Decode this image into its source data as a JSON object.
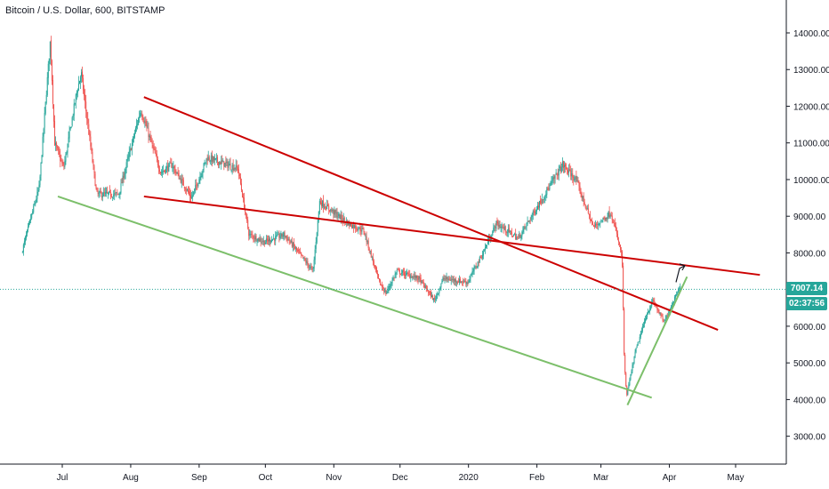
{
  "header": {
    "title": "Bitcoin / U.S. Dollar, 600, BITSTAMP"
  },
  "price_axis": {
    "ticks": [
      "14000.00",
      "13000.00",
      "12000.00",
      "11000.00",
      "10000.00",
      "9000.00",
      "8000.00",
      "6000.00",
      "5000.00",
      "4000.00",
      "3000.00"
    ],
    "last_price": "7007.14",
    "countdown": "02:37:56"
  },
  "time_axis": {
    "ticks": [
      "Jul",
      "Aug",
      "Sep",
      "Oct",
      "Nov",
      "Dec",
      "2020",
      "Feb",
      "Mar",
      "Apr",
      "May"
    ]
  },
  "colors": {
    "up": "#26a69a",
    "down": "#ef5350",
    "resistance": "#cc0000",
    "support": "#7cbf6a",
    "price_line": "#26a69a",
    "price_badge": "#26a69a",
    "countdown_badge": "#26a69a"
  },
  "chart_data": {
    "type": "candlestick",
    "symbol": "BTCUSD",
    "interval": "600",
    "exchange": "BITSTAMP",
    "ylim": [
      2500,
      14600
    ],
    "price_path": [
      [
        "2019-06-13",
        8000
      ],
      [
        "2019-06-21",
        9800
      ],
      [
        "2019-06-26",
        13800
      ],
      [
        "2019-06-28",
        11000
      ],
      [
        "2019-07-02",
        10300
      ],
      [
        "2019-07-08",
        12400
      ],
      [
        "2019-07-10",
        12900
      ],
      [
        "2019-07-17",
        9600
      ],
      [
        "2019-07-27",
        9600
      ],
      [
        "2019-08-06",
        11900
      ],
      [
        "2019-08-15",
        10200
      ],
      [
        "2019-08-20",
        10400
      ],
      [
        "2019-08-29",
        9500
      ],
      [
        "2019-09-05",
        10600
      ],
      [
        "2019-09-19",
        10300
      ],
      [
        "2019-09-24",
        8500
      ],
      [
        "2019-10-01",
        8300
      ],
      [
        "2019-10-10",
        8500
      ],
      [
        "2019-10-23",
        7500
      ],
      [
        "2019-10-26",
        9400
      ],
      [
        "2019-11-08",
        8800
      ],
      [
        "2019-11-15",
        8600
      ],
      [
        "2019-11-22",
        7200
      ],
      [
        "2019-11-25",
        6900
      ],
      [
        "2019-11-30",
        7500
      ],
      [
        "2019-12-10",
        7300
      ],
      [
        "2019-12-17",
        6700
      ],
      [
        "2019-12-21",
        7300
      ],
      [
        "2020-01-01",
        7200
      ],
      [
        "2020-01-08",
        8000
      ],
      [
        "2020-01-14",
        8800
      ],
      [
        "2020-01-24",
        8400
      ],
      [
        "2020-02-05",
        9600
      ],
      [
        "2020-02-13",
        10400
      ],
      [
        "2020-02-19",
        10000
      ],
      [
        "2020-02-27",
        8700
      ],
      [
        "2020-03-06",
        9100
      ],
      [
        "2020-03-11",
        7900
      ],
      [
        "2020-03-12",
        5000
      ],
      [
        "2020-03-13",
        4100
      ],
      [
        "2020-03-17",
        5300
      ],
      [
        "2020-03-22",
        6300
      ],
      [
        "2020-03-25",
        6700
      ],
      [
        "2020-03-30",
        6100
      ],
      [
        "2020-04-04",
        6800
      ],
      [
        "2020-04-06",
        7100
      ]
    ],
    "trendlines": [
      {
        "kind": "resistance",
        "from": [
          "2019-08-07",
          12250
        ],
        "to": [
          "2020-04-23",
          5900
        ]
      },
      {
        "kind": "resistance",
        "from": [
          "2019-08-07",
          9540
        ],
        "to": [
          "2020-05-12",
          7400
        ]
      },
      {
        "kind": "support",
        "from": [
          "2019-06-29",
          9540
        ],
        "to": [
          "2020-03-24",
          4050
        ]
      },
      {
        "kind": "support",
        "from": [
          "2020-03-13",
          3850
        ],
        "to": [
          "2020-04-09",
          7350
        ]
      }
    ],
    "projection_arrow": {
      "from": [
        "2020-04-04",
        7200
      ],
      "to": [
        "2020-04-08",
        7650
      ]
    },
    "last_price": 7007.14,
    "grid": false,
    "legend": "none"
  }
}
